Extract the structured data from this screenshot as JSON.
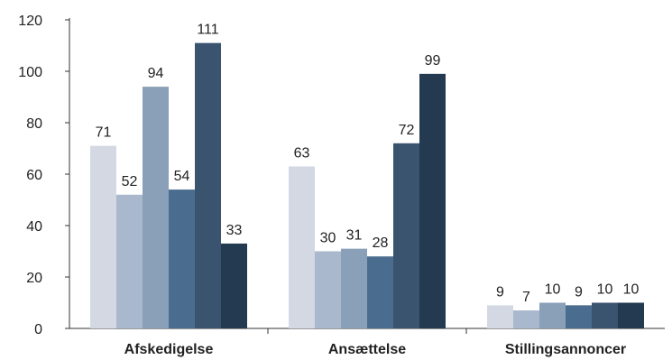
{
  "chart_data": {
    "type": "bar",
    "categories": [
      "Afskedigelse",
      "Ansættelse",
      "Stillingsannoncer"
    ],
    "series": [
      {
        "values": [
          71,
          63,
          9
        ],
        "color": "#d3d8e3"
      },
      {
        "values": [
          52,
          30,
          7
        ],
        "color": "#a9b8cc"
      },
      {
        "values": [
          94,
          31,
          10
        ],
        "color": "#8a9fb8"
      },
      {
        "values": [
          54,
          28,
          9
        ],
        "color": "#4a6d8f"
      },
      {
        "values": [
          111,
          72,
          10
        ],
        "color": "#3a5470"
      },
      {
        "values": [
          33,
          99,
          10
        ],
        "color": "#243a50"
      }
    ],
    "title": "",
    "xlabel": "",
    "ylabel": "",
    "ylim": [
      0,
      120
    ],
    "yticks": [
      0,
      20,
      40,
      60,
      80,
      100,
      120
    ],
    "grid": false,
    "data_labels": true
  }
}
